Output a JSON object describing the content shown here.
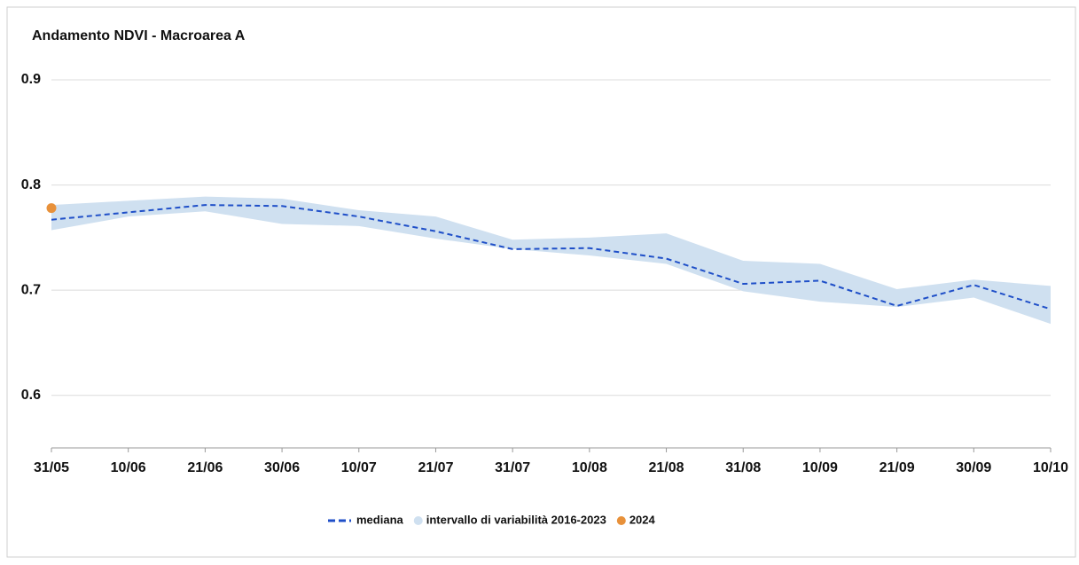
{
  "chart_data": {
    "type": "line",
    "title": "Andamento NDVI - Macroarea A",
    "categories": [
      "31/05",
      "10/06",
      "21/06",
      "30/06",
      "10/07",
      "21/07",
      "31/07",
      "10/08",
      "21/08",
      "31/08",
      "10/09",
      "21/09",
      "30/09",
      "10/10"
    ],
    "ylim": [
      0.55,
      0.9
    ],
    "yticks": [
      0.6,
      0.7,
      0.8,
      0.9
    ],
    "grid": true,
    "legend": "bottom",
    "series": [
      {
        "name": "mediana",
        "color": "#1f4fc8",
        "style": "dashed",
        "values": [
          0.767,
          0.774,
          0.781,
          0.78,
          0.77,
          0.756,
          0.739,
          0.74,
          0.73,
          0.706,
          0.709,
          0.685,
          0.705,
          0.682
        ]
      },
      {
        "name": "intervallo di variabilità 2016-2023",
        "color": "#cfe0f0",
        "style": "band",
        "low": [
          0.757,
          0.77,
          0.775,
          0.763,
          0.761,
          0.749,
          0.739,
          0.733,
          0.725,
          0.699,
          0.689,
          0.684,
          0.693,
          0.668
        ],
        "high": [
          0.781,
          0.785,
          0.789,
          0.787,
          0.776,
          0.77,
          0.748,
          0.75,
          0.754,
          0.728,
          0.725,
          0.701,
          0.71,
          0.704
        ]
      },
      {
        "name": "2024",
        "color": "#e8913a",
        "style": "points",
        "values": [
          0.778,
          null,
          null,
          null,
          null,
          null,
          null,
          null,
          null,
          null,
          null,
          null,
          null,
          null
        ]
      }
    ]
  }
}
